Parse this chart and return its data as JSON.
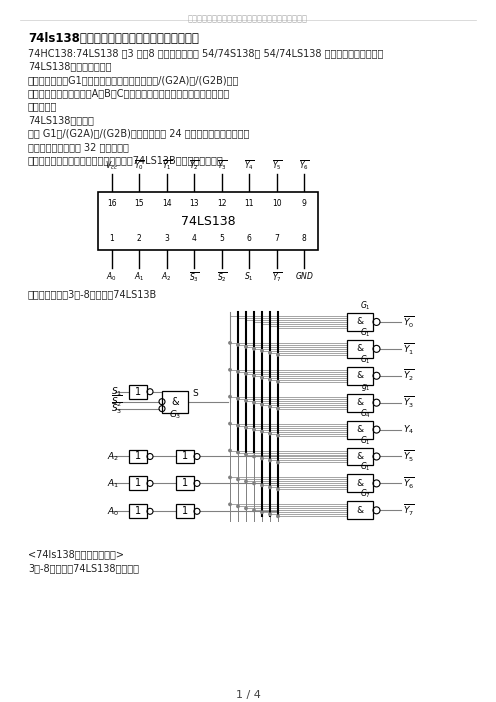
{
  "watermark": "真诚为您提供优质参考资料，若有不当之处，请指正。",
  "title_text": "74ls138译码器内部电路逻辑图功能表简单应用",
  "body_lines": [
    "74HC138:74LS138 为3 线－8 线译码器，共有 54/74S138和 54/74LS138 两种线路结构型式，其",
    "74LS138工作原理如下：",
    "当一个选通端（G1）为高电平，另两个选通端（/(G2A)和/(G2B)）为",
    "低电平时，可将地址端（A、B、C）的二进制编码在一个对应的输出端以低",
    "电平译出。",
    "74LS138的作用：",
    "利用 G1、/(G2A)和/(G2B)可级联扩展成 24 线译码器；若外接一个反",
    "相器还可级联扩展成 32 线译码器。",
    "若将选通端中的一个作为数据输入端时，74LS13B还可作数据分配器"
  ],
  "caption_circuit": "用与非门组成的3线-8线译码器74LS13B",
  "caption2": "<74ls138译码器内部电路>",
  "caption3": "3线-8线译码器74LS138的功能表",
  "page": "1 / 4",
  "bg": "#ffffff"
}
